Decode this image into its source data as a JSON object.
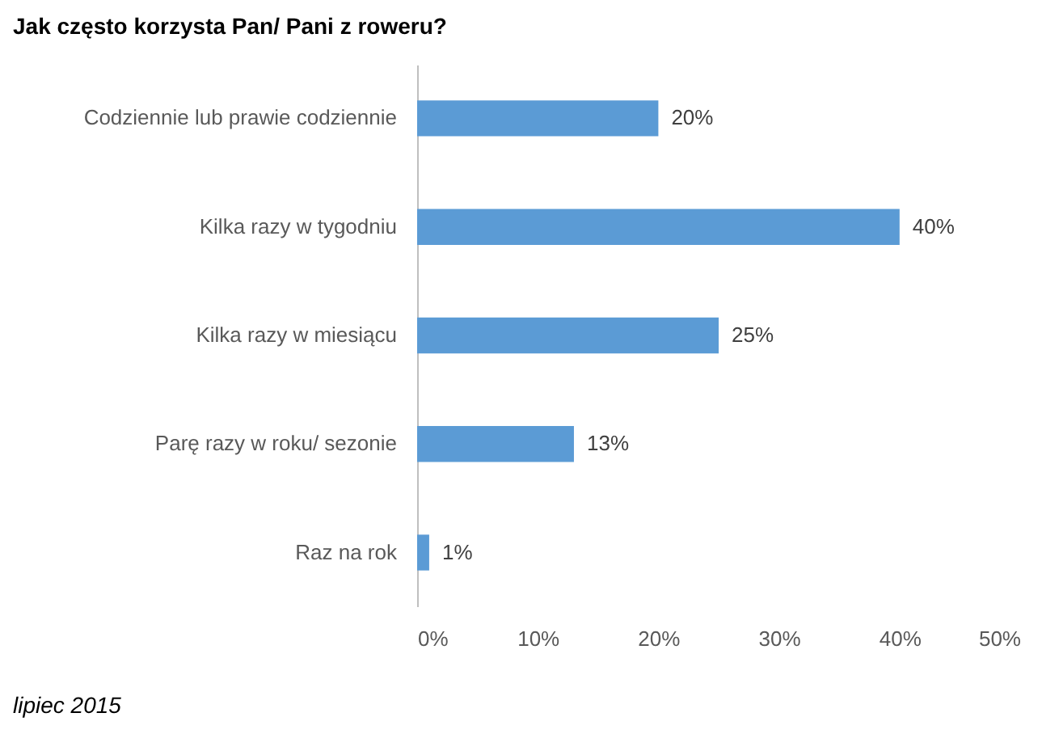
{
  "chart_data": {
    "type": "bar",
    "orientation": "horizontal",
    "title": "Jak często korzysta Pan/ Pani z roweru?",
    "categories": [
      "Codziennie lub prawie codziennie",
      "Kilka razy w tygodniu",
      "Kilka razy w miesiącu",
      "Parę razy w roku/ sezonie",
      "Raz na rok"
    ],
    "values": [
      20,
      40,
      25,
      13,
      1
    ],
    "value_labels": [
      "20%",
      "40%",
      "25%",
      "13%",
      "1%"
    ],
    "color": "#5b9bd5",
    "xlim": [
      0,
      50
    ],
    "xticks": [
      {
        "value": 0,
        "label": "0%"
      },
      {
        "value": 10,
        "label": "10%"
      },
      {
        "value": 20,
        "label": "20%"
      },
      {
        "value": 30,
        "label": "30%"
      },
      {
        "value": 40,
        "label": "40%"
      },
      {
        "value": 50,
        "label": "50%"
      }
    ],
    "grid": false,
    "annotations": [
      "lipiec 2015"
    ]
  }
}
